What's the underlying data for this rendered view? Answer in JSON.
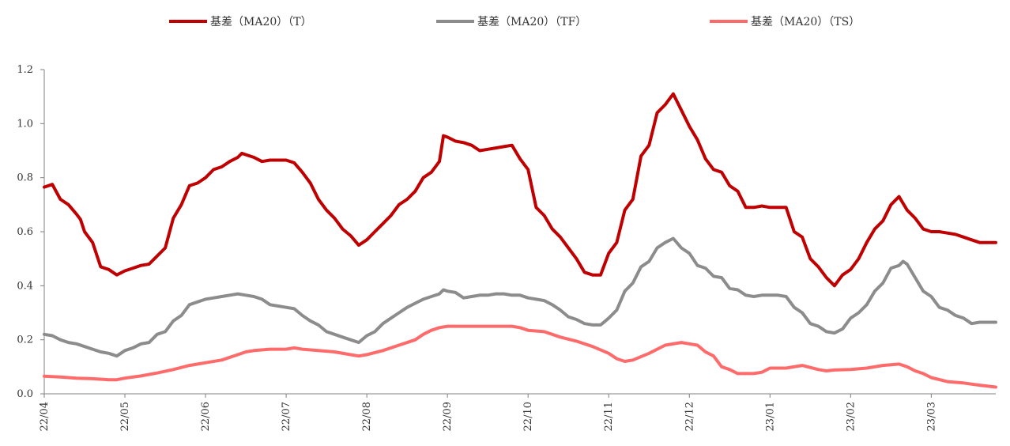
{
  "chart_data": {
    "type": "line",
    "title": "",
    "xlabel": "",
    "ylabel": "",
    "ylim": [
      0,
      1.2
    ],
    "yticks": [
      "0.0",
      "0.2",
      "0.4",
      "0.6",
      "0.8",
      "1.0",
      "1.2"
    ],
    "x_tick_labels": [
      "22/04",
      "22/05",
      "22/06",
      "22/07",
      "22/08",
      "22/09",
      "22/10",
      "22/11",
      "22/12",
      "23/01",
      "23/02",
      "23/03"
    ],
    "x_range": [
      0,
      11.8
    ],
    "grid": false,
    "legend_position": "top",
    "series": [
      {
        "name": "基差（MA20）（T）",
        "color": "#c00000",
        "points": [
          [
            0.0,
            0.765
          ],
          [
            0.1,
            0.775
          ],
          [
            0.2,
            0.72
          ],
          [
            0.3,
            0.7
          ],
          [
            0.4,
            0.665
          ],
          [
            0.45,
            0.645
          ],
          [
            0.5,
            0.6
          ],
          [
            0.6,
            0.56
          ],
          [
            0.7,
            0.47
          ],
          [
            0.8,
            0.46
          ],
          [
            0.9,
            0.44
          ],
          [
            1.0,
            0.455
          ],
          [
            1.1,
            0.465
          ],
          [
            1.2,
            0.475
          ],
          [
            1.3,
            0.48
          ],
          [
            1.4,
            0.51
          ],
          [
            1.5,
            0.54
          ],
          [
            1.6,
            0.65
          ],
          [
            1.7,
            0.7
          ],
          [
            1.8,
            0.77
          ],
          [
            1.9,
            0.78
          ],
          [
            2.0,
            0.8
          ],
          [
            2.1,
            0.83
          ],
          [
            2.2,
            0.84
          ],
          [
            2.3,
            0.86
          ],
          [
            2.4,
            0.875
          ],
          [
            2.45,
            0.89
          ],
          [
            2.5,
            0.885
          ],
          [
            2.6,
            0.875
          ],
          [
            2.7,
            0.86
          ],
          [
            2.8,
            0.865
          ],
          [
            2.9,
            0.865
          ],
          [
            3.0,
            0.865
          ],
          [
            3.1,
            0.855
          ],
          [
            3.2,
            0.82
          ],
          [
            3.3,
            0.78
          ],
          [
            3.4,
            0.72
          ],
          [
            3.5,
            0.68
          ],
          [
            3.6,
            0.65
          ],
          [
            3.7,
            0.61
          ],
          [
            3.8,
            0.585
          ],
          [
            3.9,
            0.55
          ],
          [
            4.0,
            0.57
          ],
          [
            4.1,
            0.6
          ],
          [
            4.2,
            0.63
          ],
          [
            4.3,
            0.66
          ],
          [
            4.4,
            0.7
          ],
          [
            4.5,
            0.72
          ],
          [
            4.6,
            0.75
          ],
          [
            4.7,
            0.8
          ],
          [
            4.8,
            0.82
          ],
          [
            4.9,
            0.86
          ],
          [
            4.95,
            0.955
          ],
          [
            5.0,
            0.95
          ],
          [
            5.1,
            0.935
          ],
          [
            5.2,
            0.93
          ],
          [
            5.3,
            0.92
          ],
          [
            5.4,
            0.9
          ],
          [
            5.5,
            0.905
          ],
          [
            5.6,
            0.91
          ],
          [
            5.7,
            0.915
          ],
          [
            5.8,
            0.92
          ],
          [
            5.9,
            0.87
          ],
          [
            6.0,
            0.83
          ],
          [
            6.1,
            0.69
          ],
          [
            6.2,
            0.66
          ],
          [
            6.3,
            0.61
          ],
          [
            6.4,
            0.58
          ],
          [
            6.5,
            0.54
          ],
          [
            6.6,
            0.5
          ],
          [
            6.7,
            0.45
          ],
          [
            6.8,
            0.44
          ],
          [
            6.9,
            0.44
          ],
          [
            7.0,
            0.52
          ],
          [
            7.1,
            0.56
          ],
          [
            7.2,
            0.68
          ],
          [
            7.3,
            0.72
          ],
          [
            7.4,
            0.88
          ],
          [
            7.5,
            0.92
          ],
          [
            7.6,
            1.04
          ],
          [
            7.7,
            1.07
          ],
          [
            7.8,
            1.11
          ],
          [
            7.9,
            1.05
          ],
          [
            8.0,
            0.99
          ],
          [
            8.1,
            0.94
          ],
          [
            8.2,
            0.87
          ],
          [
            8.3,
            0.83
          ],
          [
            8.4,
            0.82
          ],
          [
            8.5,
            0.77
          ],
          [
            8.6,
            0.75
          ],
          [
            8.7,
            0.69
          ],
          [
            8.8,
            0.69
          ],
          [
            8.9,
            0.695
          ],
          [
            9.0,
            0.69
          ],
          [
            9.1,
            0.69
          ],
          [
            9.2,
            0.69
          ],
          [
            9.3,
            0.6
          ],
          [
            9.4,
            0.58
          ],
          [
            9.5,
            0.5
          ],
          [
            9.6,
            0.47
          ],
          [
            9.7,
            0.43
          ],
          [
            9.8,
            0.4
          ],
          [
            9.9,
            0.44
          ],
          [
            10.0,
            0.46
          ],
          [
            10.1,
            0.5
          ],
          [
            10.2,
            0.56
          ],
          [
            10.3,
            0.61
          ],
          [
            10.4,
            0.64
          ],
          [
            10.5,
            0.7
          ],
          [
            10.6,
            0.73
          ],
          [
            10.7,
            0.68
          ],
          [
            10.8,
            0.65
          ],
          [
            10.9,
            0.61
          ],
          [
            11.0,
            0.6
          ],
          [
            11.1,
            0.6
          ],
          [
            11.2,
            0.595
          ],
          [
            11.3,
            0.59
          ],
          [
            11.4,
            0.58
          ],
          [
            11.5,
            0.57
          ],
          [
            11.6,
            0.56
          ],
          [
            11.7,
            0.56
          ],
          [
            11.8,
            0.56
          ]
        ]
      },
      {
        "name": "基差（MA20）（TF）",
        "color": "#8c8c8c",
        "points": [
          [
            0.0,
            0.22
          ],
          [
            0.1,
            0.215
          ],
          [
            0.2,
            0.2
          ],
          [
            0.3,
            0.19
          ],
          [
            0.4,
            0.185
          ],
          [
            0.5,
            0.175
          ],
          [
            0.6,
            0.165
          ],
          [
            0.7,
            0.155
          ],
          [
            0.8,
            0.15
          ],
          [
            0.9,
            0.14
          ],
          [
            1.0,
            0.16
          ],
          [
            1.1,
            0.17
          ],
          [
            1.2,
            0.185
          ],
          [
            1.3,
            0.19
          ],
          [
            1.4,
            0.22
          ],
          [
            1.5,
            0.23
          ],
          [
            1.6,
            0.27
          ],
          [
            1.7,
            0.29
          ],
          [
            1.8,
            0.33
          ],
          [
            1.9,
            0.34
          ],
          [
            2.0,
            0.35
          ],
          [
            2.1,
            0.355
          ],
          [
            2.2,
            0.36
          ],
          [
            2.3,
            0.365
          ],
          [
            2.4,
            0.37
          ],
          [
            2.5,
            0.365
          ],
          [
            2.6,
            0.36
          ],
          [
            2.7,
            0.35
          ],
          [
            2.8,
            0.33
          ],
          [
            2.9,
            0.325
          ],
          [
            3.0,
            0.32
          ],
          [
            3.1,
            0.315
          ],
          [
            3.2,
            0.29
          ],
          [
            3.3,
            0.27
          ],
          [
            3.4,
            0.255
          ],
          [
            3.5,
            0.23
          ],
          [
            3.6,
            0.22
          ],
          [
            3.7,
            0.21
          ],
          [
            3.8,
            0.2
          ],
          [
            3.9,
            0.19
          ],
          [
            4.0,
            0.215
          ],
          [
            4.1,
            0.23
          ],
          [
            4.2,
            0.26
          ],
          [
            4.3,
            0.28
          ],
          [
            4.4,
            0.3
          ],
          [
            4.5,
            0.32
          ],
          [
            4.6,
            0.335
          ],
          [
            4.7,
            0.35
          ],
          [
            4.8,
            0.36
          ],
          [
            4.9,
            0.37
          ],
          [
            4.95,
            0.385
          ],
          [
            5.0,
            0.38
          ],
          [
            5.1,
            0.375
          ],
          [
            5.2,
            0.355
          ],
          [
            5.3,
            0.36
          ],
          [
            5.4,
            0.365
          ],
          [
            5.5,
            0.365
          ],
          [
            5.6,
            0.37
          ],
          [
            5.7,
            0.37
          ],
          [
            5.8,
            0.365
          ],
          [
            5.9,
            0.365
          ],
          [
            6.0,
            0.355
          ],
          [
            6.1,
            0.35
          ],
          [
            6.2,
            0.345
          ],
          [
            6.3,
            0.33
          ],
          [
            6.4,
            0.31
          ],
          [
            6.5,
            0.285
          ],
          [
            6.6,
            0.275
          ],
          [
            6.7,
            0.26
          ],
          [
            6.8,
            0.255
          ],
          [
            6.9,
            0.255
          ],
          [
            7.0,
            0.28
          ],
          [
            7.1,
            0.31
          ],
          [
            7.2,
            0.38
          ],
          [
            7.3,
            0.41
          ],
          [
            7.4,
            0.47
          ],
          [
            7.5,
            0.49
          ],
          [
            7.6,
            0.54
          ],
          [
            7.7,
            0.56
          ],
          [
            7.8,
            0.575
          ],
          [
            7.9,
            0.54
          ],
          [
            8.0,
            0.52
          ],
          [
            8.1,
            0.475
          ],
          [
            8.2,
            0.465
          ],
          [
            8.3,
            0.435
          ],
          [
            8.4,
            0.43
          ],
          [
            8.5,
            0.39
          ],
          [
            8.6,
            0.385
          ],
          [
            8.7,
            0.365
          ],
          [
            8.8,
            0.36
          ],
          [
            8.9,
            0.365
          ],
          [
            9.0,
            0.365
          ],
          [
            9.1,
            0.365
          ],
          [
            9.2,
            0.36
          ],
          [
            9.3,
            0.32
          ],
          [
            9.4,
            0.3
          ],
          [
            9.5,
            0.26
          ],
          [
            9.6,
            0.25
          ],
          [
            9.7,
            0.23
          ],
          [
            9.8,
            0.225
          ],
          [
            9.9,
            0.24
          ],
          [
            10.0,
            0.28
          ],
          [
            10.1,
            0.3
          ],
          [
            10.2,
            0.33
          ],
          [
            10.3,
            0.38
          ],
          [
            10.4,
            0.41
          ],
          [
            10.5,
            0.465
          ],
          [
            10.6,
            0.475
          ],
          [
            10.65,
            0.49
          ],
          [
            10.7,
            0.48
          ],
          [
            10.8,
            0.43
          ],
          [
            10.9,
            0.38
          ],
          [
            11.0,
            0.36
          ],
          [
            11.1,
            0.32
          ],
          [
            11.2,
            0.31
          ],
          [
            11.3,
            0.29
          ],
          [
            11.4,
            0.28
          ],
          [
            11.5,
            0.26
          ],
          [
            11.6,
            0.265
          ],
          [
            11.7,
            0.265
          ],
          [
            11.8,
            0.265
          ]
        ]
      },
      {
        "name": "基差（MA20）（TS）",
        "color": "#ff6b6b",
        "points": [
          [
            0.0,
            0.065
          ],
          [
            0.2,
            0.062
          ],
          [
            0.4,
            0.058
          ],
          [
            0.6,
            0.056
          ],
          [
            0.8,
            0.052
          ],
          [
            0.9,
            0.052
          ],
          [
            1.0,
            0.058
          ],
          [
            1.2,
            0.066
          ],
          [
            1.4,
            0.077
          ],
          [
            1.6,
            0.09
          ],
          [
            1.8,
            0.105
          ],
          [
            2.0,
            0.115
          ],
          [
            2.2,
            0.125
          ],
          [
            2.4,
            0.145
          ],
          [
            2.5,
            0.155
          ],
          [
            2.6,
            0.16
          ],
          [
            2.8,
            0.165
          ],
          [
            3.0,
            0.165
          ],
          [
            3.1,
            0.17
          ],
          [
            3.2,
            0.165
          ],
          [
            3.4,
            0.16
          ],
          [
            3.6,
            0.155
          ],
          [
            3.8,
            0.145
          ],
          [
            3.9,
            0.14
          ],
          [
            4.0,
            0.145
          ],
          [
            4.2,
            0.16
          ],
          [
            4.4,
            0.18
          ],
          [
            4.6,
            0.2
          ],
          [
            4.7,
            0.22
          ],
          [
            4.8,
            0.235
          ],
          [
            4.9,
            0.245
          ],
          [
            5.0,
            0.25
          ],
          [
            5.2,
            0.25
          ],
          [
            5.4,
            0.25
          ],
          [
            5.6,
            0.25
          ],
          [
            5.8,
            0.25
          ],
          [
            5.9,
            0.245
          ],
          [
            6.0,
            0.235
          ],
          [
            6.2,
            0.23
          ],
          [
            6.4,
            0.21
          ],
          [
            6.6,
            0.195
          ],
          [
            6.8,
            0.175
          ],
          [
            7.0,
            0.15
          ],
          [
            7.1,
            0.13
          ],
          [
            7.2,
            0.12
          ],
          [
            7.3,
            0.125
          ],
          [
            7.5,
            0.15
          ],
          [
            7.7,
            0.18
          ],
          [
            7.9,
            0.19
          ],
          [
            8.0,
            0.185
          ],
          [
            8.1,
            0.18
          ],
          [
            8.2,
            0.155
          ],
          [
            8.3,
            0.14
          ],
          [
            8.4,
            0.1
          ],
          [
            8.5,
            0.09
          ],
          [
            8.6,
            0.075
          ],
          [
            8.7,
            0.075
          ],
          [
            8.8,
            0.075
          ],
          [
            8.9,
            0.08
          ],
          [
            9.0,
            0.095
          ],
          [
            9.2,
            0.095
          ],
          [
            9.4,
            0.105
          ],
          [
            9.6,
            0.09
          ],
          [
            9.7,
            0.085
          ],
          [
            9.8,
            0.088
          ],
          [
            10.0,
            0.09
          ],
          [
            10.2,
            0.095
          ],
          [
            10.4,
            0.105
          ],
          [
            10.6,
            0.11
          ],
          [
            10.7,
            0.1
          ],
          [
            10.8,
            0.085
          ],
          [
            10.9,
            0.075
          ],
          [
            11.0,
            0.06
          ],
          [
            11.2,
            0.045
          ],
          [
            11.4,
            0.04
          ],
          [
            11.6,
            0.032
          ],
          [
            11.8,
            0.025
          ]
        ]
      }
    ]
  }
}
